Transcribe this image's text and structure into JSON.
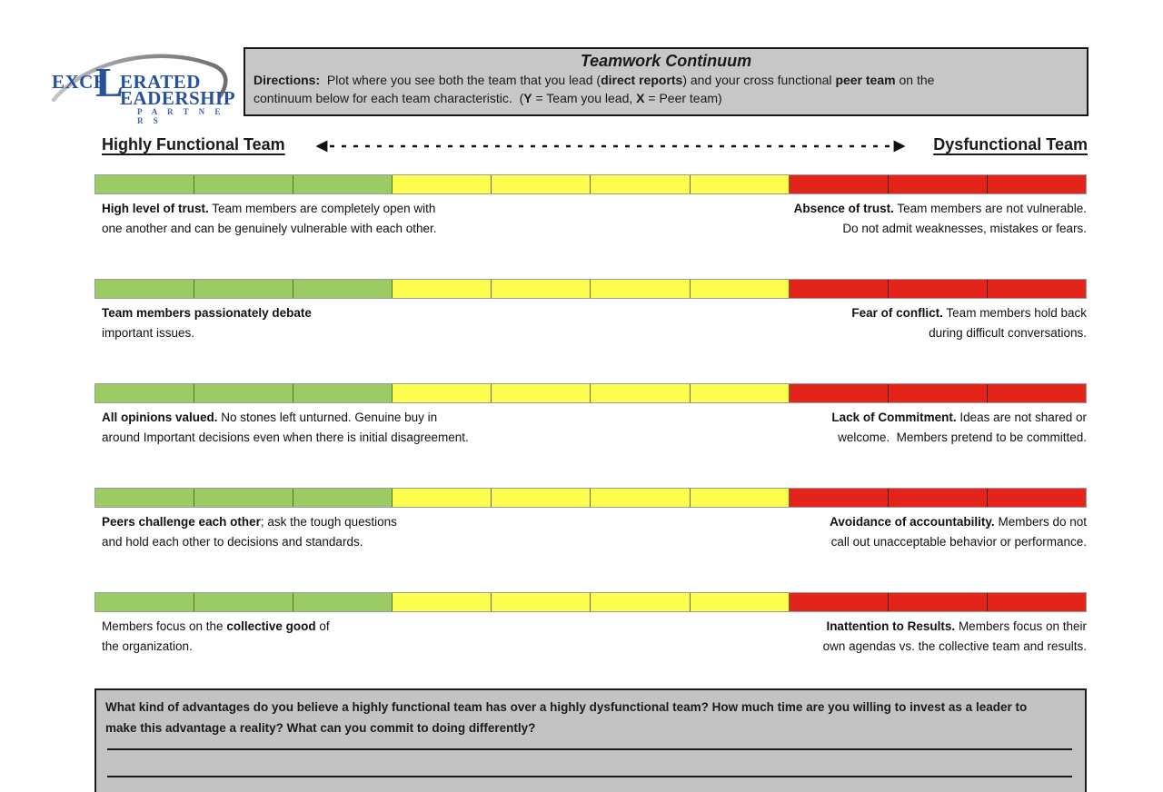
{
  "logo": {
    "line1_pre": "EXCE",
    "big_letter": "L",
    "line1_post": "ERATED",
    "line2": "EADERSHIP",
    "line3": "P A R T N E R S",
    "brand_color": "#26519f"
  },
  "directions": {
    "title": "Teamwork Continuum",
    "segments": [
      {
        "text": "Directions:",
        "bold": true
      },
      {
        "text": "  Plot where you see both the team that you lead (",
        "bold": false
      },
      {
        "text": "direct reports",
        "bold": true
      },
      {
        "text": ") and your cross functional ",
        "bold": false
      },
      {
        "text": "peer team",
        "bold": true
      },
      {
        "text": " on the\ncontinuum below for each team characteristic.  (",
        "bold": false
      },
      {
        "text": "Y",
        "bold": true
      },
      {
        "text": " = Team you lead, ",
        "bold": false
      },
      {
        "text": "X",
        "bold": true
      },
      {
        "text": " = Peer team)",
        "bold": false
      }
    ]
  },
  "continuum_header": {
    "left_label": "Highly Functional Team",
    "right_label": "Dysfunctional Team"
  },
  "scale": {
    "segments": [
      {
        "color_name": "green",
        "fill": "#9bcb63",
        "divider": "#55742a",
        "count": 3
      },
      {
        "color_name": "yellow",
        "fill": "#fdfd4e",
        "divider": "#6b6b28",
        "count": 4
      },
      {
        "color_name": "red",
        "fill": "#e2241b",
        "divider": "#4a0d08",
        "count": 3
      }
    ],
    "outer_border": "#9b9b9b"
  },
  "rows": [
    {
      "left": [
        {
          "text": "High level of trust.",
          "bold": true
        },
        {
          "text": " Team members are completely open with\none another and can be genuinely vulnerable with each other.",
          "bold": false
        }
      ],
      "right": [
        {
          "text": "Absence of trust.",
          "bold": true
        },
        {
          "text": " Team members are not vulnerable.\nDo not admit weaknesses, mistakes or fears.",
          "bold": false
        }
      ]
    },
    {
      "left": [
        {
          "text": "Team members passionately debate",
          "bold": true
        },
        {
          "text": "\nimportant issues.",
          "bold": false
        }
      ],
      "right": [
        {
          "text": "Fear of conflict.",
          "bold": true
        },
        {
          "text": " Team members hold back\nduring difficult conversations.",
          "bold": false
        }
      ]
    },
    {
      "left": [
        {
          "text": "All opinions valued.",
          "bold": true
        },
        {
          "text": " No stones left unturned. Genuine buy in\naround Important decisions even when there is initial disagreement.",
          "bold": false
        }
      ],
      "right": [
        {
          "text": "Lack of Commitment.",
          "bold": true
        },
        {
          "text": " Ideas are not shared or\nwelcome.  Members pretend to be committed.",
          "bold": false
        }
      ]
    },
    {
      "left": [
        {
          "text": "Peers challenge each other",
          "bold": true
        },
        {
          "text": "; ask the tough questions\nand hold each other to decisions and standards.",
          "bold": false
        }
      ],
      "right": [
        {
          "text": "Avoidance of accountability.",
          "bold": true
        },
        {
          "text": " Members do not\ncall out unacceptable behavior or performance.",
          "bold": false
        }
      ]
    },
    {
      "left": [
        {
          "text": "Members focus on the ",
          "bold": false
        },
        {
          "text": "collective good",
          "bold": true
        },
        {
          "text": " of\nthe organization.",
          "bold": false
        }
      ],
      "right": [
        {
          "text": "Inattention to Results.",
          "bold": true
        },
        {
          "text": " Members focus on their\nown agendas vs. the collective team and results.",
          "bold": false
        }
      ]
    }
  ],
  "reflection": {
    "question": "What kind of advantages do you believe a highly functional team has over a highly dysfunctional team? How much time are you willing to invest as a leader to\nmake this advantage a reality? What can you commit to doing differently?",
    "answer_line_count": 2
  }
}
